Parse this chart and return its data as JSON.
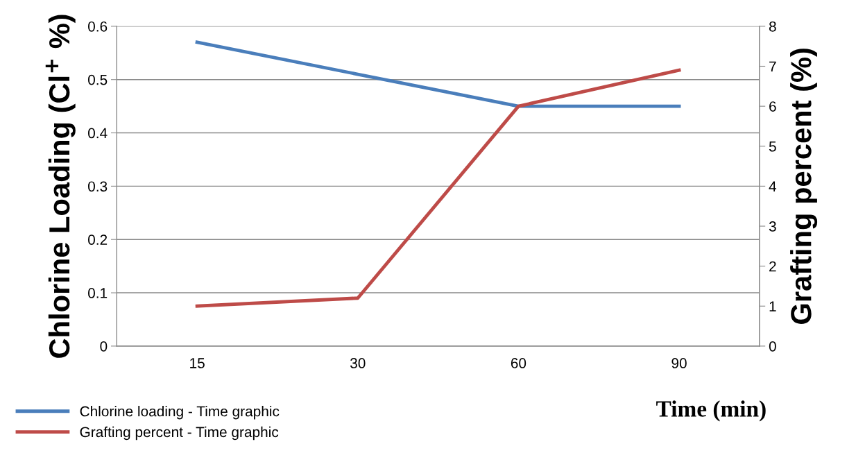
{
  "chart_data": {
    "type": "line",
    "categories": [
      "15",
      "30",
      "60",
      "90"
    ],
    "series": [
      {
        "name": "Chlorine loading - Time graphic",
        "color": "#4a7ebb",
        "values": [
          0.57,
          0.51,
          0.45,
          0.45
        ]
      },
      {
        "name": "Grafting percent - Time graphic",
        "color": "#be4b48",
        "values": [
          1.0,
          1.2,
          6.0,
          6.9
        ],
        "axis": "y2"
      }
    ],
    "xlabel": "Time (min)",
    "ylabel": "Chlorine Loading (Cl$^{+}$ %)",
    "y2label": "Grafting percent (%)",
    "ylim": [
      0,
      0.6
    ],
    "yticks": [
      0,
      0.1,
      0.2,
      0.3,
      0.4,
      0.5,
      0.6
    ],
    "y2lim": [
      0,
      8
    ],
    "y2ticks": [
      0,
      1,
      2,
      3,
      4,
      5,
      6,
      7,
      8
    ],
    "grid": "y",
    "legend": "bottom left",
    "marker": "none",
    "line_style": "solid"
  }
}
